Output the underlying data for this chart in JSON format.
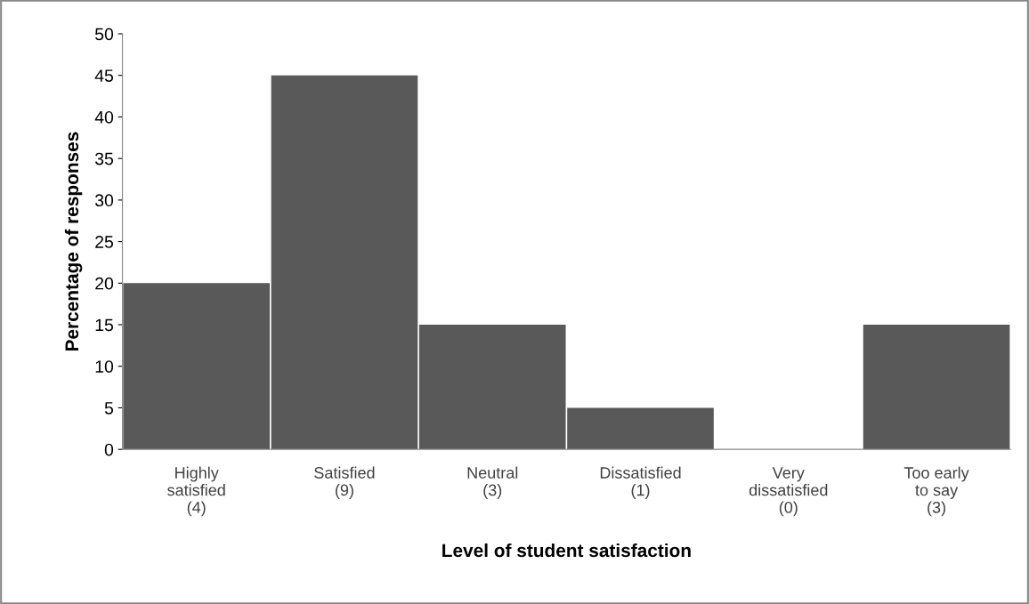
{
  "chart_data": {
    "type": "bar",
    "xlabel": "Level of student satisfaction",
    "ylabel": "Percentage of responses",
    "categories": [
      "Highly\nsatisfied\n(4)",
      "Satisfied\n(9)",
      "Neutral\n(3)",
      "Dissatisfied\n(1)",
      "Very\ndissatisfied\n(0)",
      "Too early\nto say\n(3)"
    ],
    "values": [
      20,
      45,
      15,
      5,
      0,
      15
    ],
    "color": "#595959",
    "ylim": [
      0,
      50
    ],
    "yticks": [
      0,
      5,
      10,
      15,
      20,
      25,
      30,
      35,
      40,
      45,
      50
    ],
    "grid": false,
    "legend": false
  }
}
